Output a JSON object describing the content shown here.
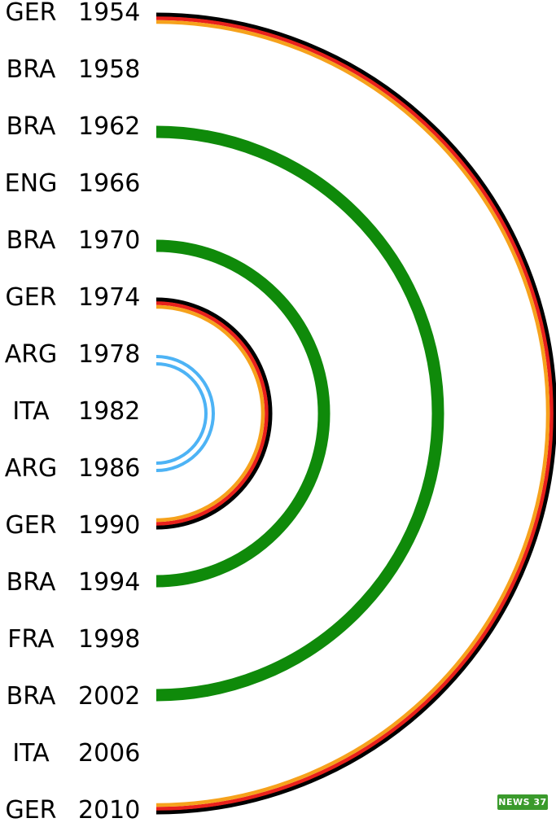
{
  "winners": [
    {
      "country": "GER",
      "year": "1954"
    },
    {
      "country": "BRA",
      "year": "1958"
    },
    {
      "country": "BRA",
      "year": "1962"
    },
    {
      "country": "ENG",
      "year": "1966"
    },
    {
      "country": "BRA",
      "year": "1970"
    },
    {
      "country": "GER",
      "year": "1974"
    },
    {
      "country": "ARG",
      "year": "1978"
    },
    {
      "country": "ITA",
      "year": "1982"
    },
    {
      "country": "ARG",
      "year": "1986"
    },
    {
      "country": "GER",
      "year": "1990"
    },
    {
      "country": "BRA",
      "year": "1994"
    },
    {
      "country": "FRA",
      "year": "1998"
    },
    {
      "country": "BRA",
      "year": "2002"
    },
    {
      "country": "ITA",
      "year": "2006"
    },
    {
      "country": "GER",
      "year": "2010"
    }
  ],
  "arcs": [
    {
      "from": "1954",
      "to": "2010",
      "country": "GER",
      "style": "flag",
      "colors": [
        "#000000",
        "#e8201c",
        "#f6a21c"
      ]
    },
    {
      "from": "1962",
      "to": "2002",
      "country": "BRA",
      "style": "solid",
      "colors": [
        "#0f8a0a"
      ]
    },
    {
      "from": "1970",
      "to": "1994",
      "country": "BRA",
      "style": "solid",
      "colors": [
        "#0f8a0a"
      ]
    },
    {
      "from": "1974",
      "to": "1990",
      "country": "GER",
      "style": "flag",
      "colors": [
        "#000000",
        "#e8201c",
        "#f6a21c"
      ]
    },
    {
      "from": "1978",
      "to": "1986",
      "country": "ARG",
      "style": "double",
      "colors": [
        "#4db3f5"
      ]
    }
  ],
  "logo": {
    "text": "NEWS 37"
  }
}
